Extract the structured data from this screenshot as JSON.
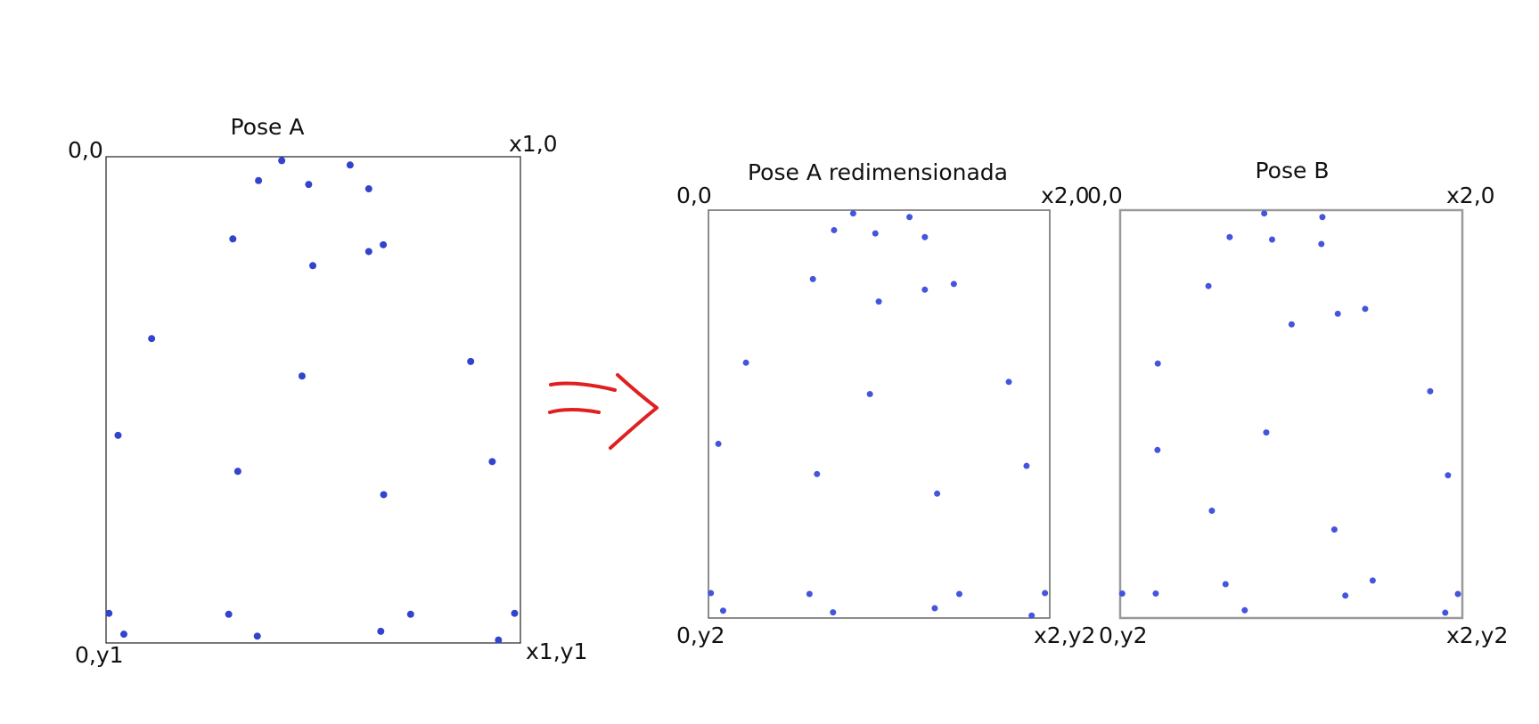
{
  "panel_a": {
    "title": "Pose A",
    "corner_top_left": "0,0",
    "corner_top_right": "x1,0",
    "corner_bottom_left": "0,y1",
    "corner_bottom_right": "x1,y1",
    "point_color": "#3344cc",
    "points": [
      [
        0.424,
        0.008
      ],
      [
        0.589,
        0.017
      ],
      [
        0.368,
        0.049
      ],
      [
        0.489,
        0.057
      ],
      [
        0.634,
        0.066
      ],
      [
        0.306,
        0.169
      ],
      [
        0.669,
        0.181
      ],
      [
        0.634,
        0.195
      ],
      [
        0.499,
        0.224
      ],
      [
        0.11,
        0.374
      ],
      [
        0.88,
        0.421
      ],
      [
        0.473,
        0.451
      ],
      [
        0.029,
        0.573
      ],
      [
        0.932,
        0.627
      ],
      [
        0.318,
        0.647
      ],
      [
        0.67,
        0.695
      ],
      [
        0.007,
        0.939
      ],
      [
        0.296,
        0.941
      ],
      [
        0.735,
        0.941
      ],
      [
        0.986,
        0.939
      ],
      [
        0.043,
        0.982
      ],
      [
        0.365,
        0.986
      ],
      [
        0.663,
        0.976
      ],
      [
        0.947,
        0.994
      ]
    ]
  },
  "arrow": {
    "color": "#e02020"
  },
  "panel_a_resized": {
    "title": "Pose A redimensionada",
    "corner_top_left": "0,0",
    "corner_top_right": "x2,0",
    "corner_bottom_left": "0,y2",
    "corner_bottom_right": "x2,y2",
    "point_color": "#4455dd",
    "points": [
      [
        0.424,
        0.008
      ],
      [
        0.589,
        0.017
      ],
      [
        0.368,
        0.049
      ],
      [
        0.489,
        0.057
      ],
      [
        0.634,
        0.066
      ],
      [
        0.306,
        0.169
      ],
      [
        0.719,
        0.181
      ],
      [
        0.634,
        0.195
      ],
      [
        0.499,
        0.224
      ],
      [
        0.11,
        0.374
      ],
      [
        0.88,
        0.421
      ],
      [
        0.473,
        0.451
      ],
      [
        0.029,
        0.573
      ],
      [
        0.932,
        0.627
      ],
      [
        0.318,
        0.647
      ],
      [
        0.67,
        0.695
      ],
      [
        0.007,
        0.939
      ],
      [
        0.296,
        0.941
      ],
      [
        0.735,
        0.941
      ],
      [
        0.986,
        0.939
      ],
      [
        0.043,
        0.982
      ],
      [
        0.365,
        0.986
      ],
      [
        0.663,
        0.976
      ],
      [
        0.947,
        0.994
      ]
    ]
  },
  "panel_b": {
    "title": "Pose B",
    "corner_top_left": "0,0",
    "corner_top_right": "x2,0",
    "corner_bottom_left": "0,y2",
    "corner_bottom_right": "x2,y2",
    "point_color": "#4455dd",
    "points": [
      [
        0.421,
        0.008
      ],
      [
        0.591,
        0.017
      ],
      [
        0.32,
        0.066
      ],
      [
        0.444,
        0.072
      ],
      [
        0.588,
        0.083
      ],
      [
        0.258,
        0.186
      ],
      [
        0.716,
        0.242
      ],
      [
        0.636,
        0.254
      ],
      [
        0.501,
        0.28
      ],
      [
        0.11,
        0.376
      ],
      [
        0.906,
        0.444
      ],
      [
        0.427,
        0.545
      ],
      [
        0.109,
        0.588
      ],
      [
        0.958,
        0.65
      ],
      [
        0.268,
        0.737
      ],
      [
        0.626,
        0.783
      ],
      [
        0.006,
        0.94
      ],
      [
        0.104,
        0.94
      ],
      [
        0.308,
        0.917
      ],
      [
        0.658,
        0.945
      ],
      [
        0.738,
        0.908
      ],
      [
        0.987,
        0.941
      ],
      [
        0.364,
        0.981
      ],
      [
        0.95,
        0.987
      ]
    ]
  }
}
